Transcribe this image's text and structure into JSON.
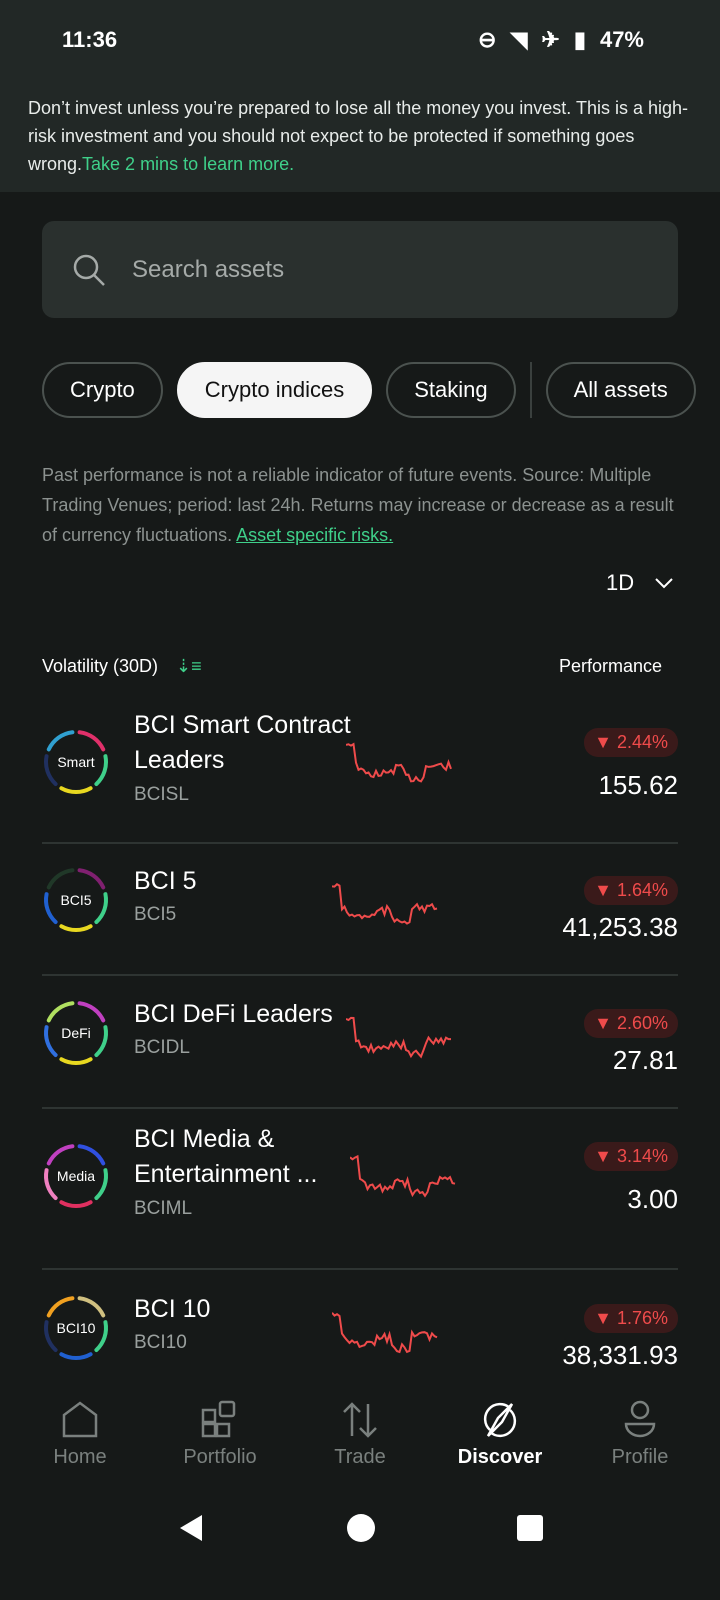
{
  "status": {
    "time": "11:36",
    "battery": "47%"
  },
  "banner": {
    "text": "Don’t invest unless you’re prepared to lose all the money you invest. This is a high-risk investment and you should not expect to be protected if something goes wrong.",
    "link": "Take 2 mins to learn more."
  },
  "search": {
    "placeholder": "Search assets"
  },
  "chips": [
    "Crypto",
    "Crypto indices",
    "Staking",
    "All assets"
  ],
  "disclaimer": {
    "text": "Past performance is not a reliable indicator of future events. Source: Multiple Trading Venues; period: last 24h. Returns may increase or decrease as a result of currency fluctuations. ",
    "link": "Asset specific risks."
  },
  "period": "1D",
  "list_header": {
    "left": "Volatility (30D)",
    "right": "Performance"
  },
  "assets": [
    {
      "logo": "Smart",
      "name": "BCI Smart Contract Leaders",
      "ticker": "BCISL",
      "change": "▼ 2.44%",
      "price": "155.62",
      "ring": [
        "#e0306a",
        "#3fd08a",
        "#e8d820",
        "#203060",
        "#30a0d0"
      ]
    },
    {
      "logo": "BCI5",
      "name": "BCI 5",
      "ticker": "BCI5",
      "change": "▼ 1.64%",
      "price": "41,253.38",
      "ring": [
        "#802070",
        "#3fd08a",
        "#e8d820",
        "#2060d0",
        "#203828"
      ]
    },
    {
      "logo": "DeFi",
      "name": "BCI DeFi Leaders",
      "ticker": "BCIDL",
      "change": "▼ 2.60%",
      "price": "27.81",
      "ring": [
        "#c040c0",
        "#3fd08a",
        "#e8d820",
        "#3070e0",
        "#b0e060"
      ]
    },
    {
      "logo": "Media",
      "name": "BCI Media & Entertainment ...",
      "ticker": "BCIML",
      "change": "▼ 3.14%",
      "price": "3.00",
      "ring": [
        "#3050e0",
        "#3fd08a",
        "#e03060",
        "#f080c0",
        "#c040c0"
      ]
    },
    {
      "logo": "BCI10",
      "name": "BCI 10",
      "ticker": "BCI10",
      "change": "▼ 1.76%",
      "price": "38,331.93",
      "ring": [
        "#d0c080",
        "#3fd08a",
        "#2060d0",
        "#203060",
        "#f0a020"
      ]
    }
  ],
  "nav": [
    "Home",
    "Portfolio",
    "Trade",
    "Discover",
    "Profile"
  ],
  "colors": {
    "accent": "#3fd08a",
    "negative": "#ef4b4b"
  }
}
